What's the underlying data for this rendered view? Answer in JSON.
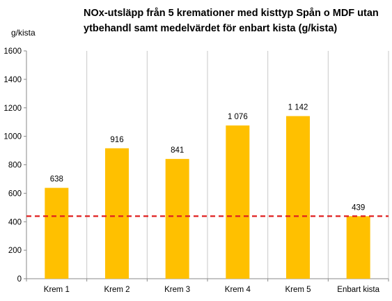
{
  "chart_data": {
    "type": "bar",
    "title": "NOx-utsläpp från 5 kremationer med kisttyp Spån o MDF utan ytbehandl samt medelvärdet för enbart kista (g/kista)",
    "ylabel": "g/kista",
    "xlabel": "",
    "categories": [
      "Krem 1",
      "Krem 2",
      "Krem 3",
      "Krem 4",
      "Krem 5",
      "Enbart kista"
    ],
    "values": [
      638,
      916,
      841,
      1076,
      1142,
      439
    ],
    "data_labels": [
      "638",
      "916",
      "841",
      "1 076",
      "1 142",
      "439"
    ],
    "ylim": [
      0,
      1600
    ],
    "yticks": [
      0,
      200,
      400,
      600,
      800,
      1000,
      1200,
      1400,
      1600
    ],
    "ytick_labels": [
      "0",
      "200",
      "400",
      "600",
      "800",
      "1000",
      "1200",
      "1400",
      "1600"
    ],
    "reference_line": {
      "value": 439,
      "style": "dashed",
      "color": "#e02020"
    },
    "bar_color": "#ffc000",
    "grid": "vertical-between-categories",
    "legend": "none"
  }
}
